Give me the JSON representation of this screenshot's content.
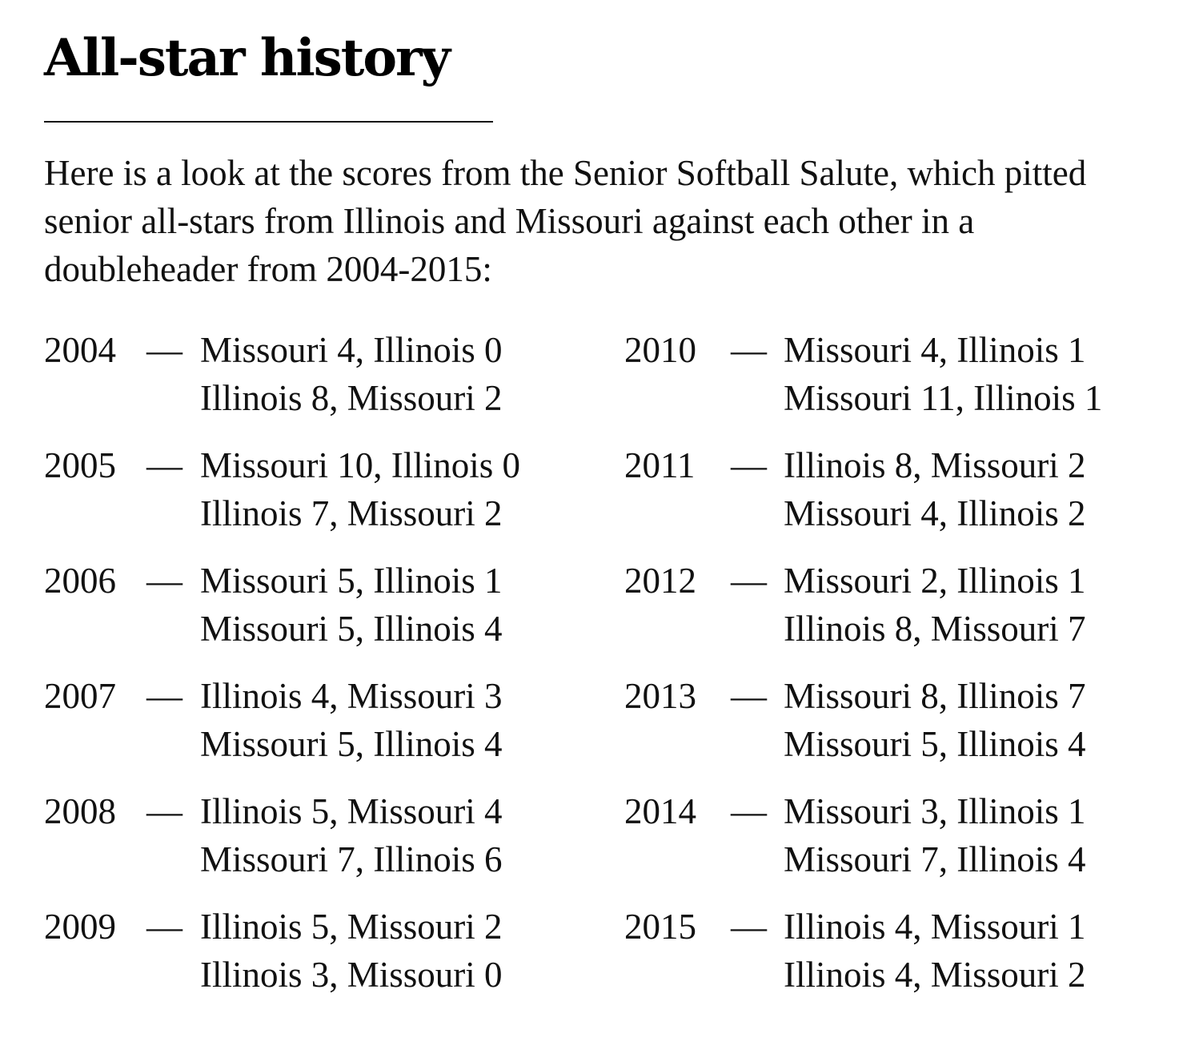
{
  "title": "All-star history",
  "intro": "Here is a look at the scores from the Senior Softball Salute, which pitted senior all-stars from Illinois and Missouri against each other in a doubleheader from 2004-2015:",
  "separator": "—",
  "left_column": [
    {
      "year": "2004",
      "games": [
        "Missouri 4, Illinois 0",
        "Illinois 8, Missouri 2"
      ]
    },
    {
      "year": "2005",
      "games": [
        "Missouri 10, Illinois 0",
        "Illinois 7, Missouri 2"
      ]
    },
    {
      "year": "2006",
      "games": [
        "Missouri 5, Illinois 1",
        "Missouri 5, Illinois 4"
      ]
    },
    {
      "year": "2007",
      "games": [
        "Illinois 4, Missouri 3",
        "Missouri 5, Illinois 4"
      ]
    },
    {
      "year": "2008",
      "games": [
        "Illinois 5, Missouri 4",
        "Missouri 7, Illinois 6"
      ]
    },
    {
      "year": "2009",
      "games": [
        "Illinois 5, Missouri 2",
        "Illinois 3, Missouri 0"
      ]
    }
  ],
  "right_column": [
    {
      "year": "2010",
      "games": [
        "Missouri 4, Illinois 1",
        "Missouri 11, Illinois 1"
      ]
    },
    {
      "year": "2011",
      "games": [
        "Illinois 8, Missouri 2",
        "Missouri 4, Illinois 2"
      ]
    },
    {
      "year": "2012",
      "games": [
        "Missouri 2, Illinois 1",
        "Illinois 8, Missouri 7"
      ]
    },
    {
      "year": "2013",
      "games": [
        "Missouri 8, Illinois 7",
        "Missouri 5, Illinois 4"
      ]
    },
    {
      "year": "2014",
      "games": [
        "Missouri 3, Illinois 1",
        "Missouri 7, Illinois 4"
      ]
    },
    {
      "year": "2015",
      "games": [
        "Illinois 4, Missouri 1",
        "Illinois 4, Missouri 2"
      ]
    }
  ]
}
